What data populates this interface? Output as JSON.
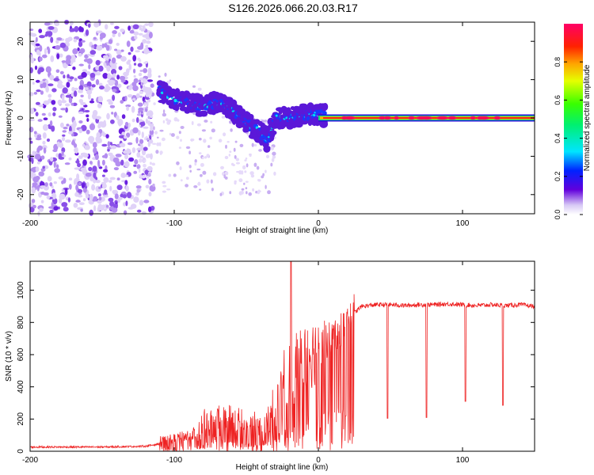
{
  "title": "S126.2026.066.20.03.R17",
  "chart_data": [
    {
      "type": "heatmap",
      "subtype": "spectrogram",
      "title": "S126.2026.066.20.03.R17",
      "xlabel": "Height of straight line (km)",
      "ylabel": "Frequency (Hz)",
      "xlim": [
        -200,
        150
      ],
      "ylim": [
        -25,
        25
      ],
      "xticks": [
        -200,
        -100,
        0,
        100
      ],
      "yticks": [
        -20,
        -10,
        0,
        10,
        20
      ],
      "colorbar": {
        "label": "Normalized spectral amplitude",
        "range": [
          0.0,
          1.0
        ],
        "ticks": [
          0.0,
          0.2,
          0.4,
          0.6,
          0.8
        ]
      },
      "features": [
        {
          "name": "noise",
          "x_range": [
            -200,
            -115
          ],
          "freq_range": [
            -25,
            25
          ],
          "amplitude": 0.1
        },
        {
          "name": "scatter",
          "x_range": [
            -125,
            -30
          ],
          "freq_range": [
            -20,
            16
          ],
          "amplitude": 0.05
        },
        {
          "name": "carrier",
          "x": [
            -110,
            -100,
            -90,
            -80,
            -70,
            -60,
            -50,
            -40,
            -35,
            -30,
            -20,
            -10,
            0,
            10,
            150
          ],
          "freq": [
            7,
            5,
            4,
            3,
            4,
            2,
            -1,
            -4,
            -6,
            0,
            0,
            1,
            1,
            0,
            0
          ]
        },
        {
          "name": "tone",
          "x_range": [
            0,
            150
          ],
          "freq": 0,
          "amplitude": 1.0
        }
      ]
    },
    {
      "type": "line",
      "title": "",
      "xlabel": "Height of straight line (km)",
      "ylabel": "SNR (10 * v/v)",
      "xlim": [
        -200,
        150
      ],
      "ylim": [
        0,
        1180
      ],
      "xticks": [
        -200,
        -100,
        0,
        100
      ],
      "yticks": [
        0,
        200,
        400,
        600,
        800,
        1000
      ],
      "series": [
        {
          "name": "SNR",
          "color": "#ee2222",
          "x": [
            -200,
            -150,
            -120,
            -100,
            -90,
            -80,
            -70,
            -60,
            -50,
            -45,
            -40,
            -35,
            -30,
            -25,
            -20,
            -15,
            -10,
            -5,
            0,
            5,
            10,
            15,
            20,
            25,
            30,
            40,
            50,
            60,
            70,
            80,
            90,
            100,
            110,
            120,
            130,
            140,
            150
          ],
          "values": [
            25,
            25,
            30,
            60,
            90,
            130,
            150,
            170,
            120,
            110,
            100,
            150,
            250,
            350,
            420,
            480,
            560,
            560,
            600,
            650,
            700,
            730,
            780,
            860,
            900,
            910,
            910,
            905,
            910,
            910,
            915,
            910,
            905,
            910,
            905,
            910,
            900
          ],
          "spikes_up": [
            {
              "x": -19,
              "value": 1180
            }
          ],
          "dips": [
            {
              "x": 19,
              "value": 220
            },
            {
              "x": 48,
              "value": 205
            },
            {
              "x": 75,
              "value": 210
            },
            {
              "x": 102,
              "value": 310
            },
            {
              "x": 128,
              "value": 285
            }
          ]
        }
      ]
    }
  ]
}
